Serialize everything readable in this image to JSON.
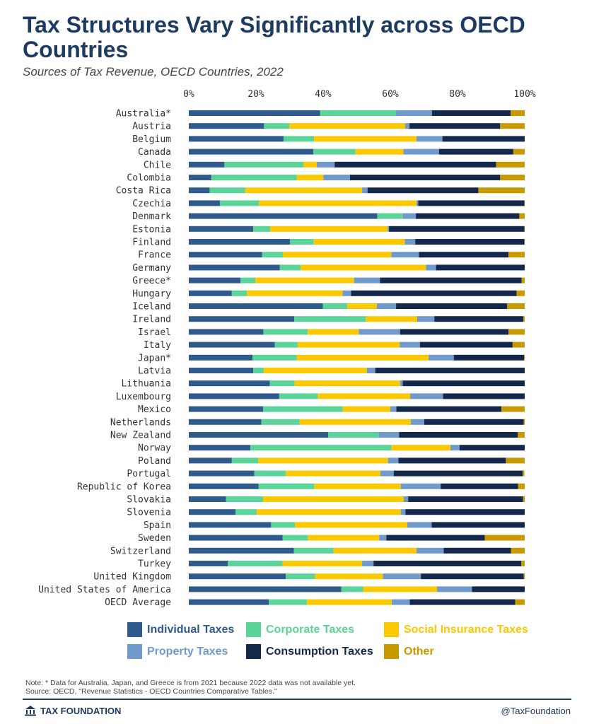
{
  "title": "Tax Structures Vary Significantly across OECD Countries",
  "subtitle": "Sources of Tax Revenue, OECD Countries, 2022",
  "note": "Note: * Data for Australia, Japan, and Greece is from 2021 because 2022 data was not available yet.",
  "source": "Source: OECD, \"Revenue Statistics - OECD Countries Comparative Tables.\"",
  "brand": "TAX FOUNDATION",
  "handle": "@TaxFoundation",
  "chart_data": {
    "type": "bar",
    "orientation": "horizontal",
    "stacked": true,
    "title": "Tax Structures Vary Significantly across OECD Countries",
    "subtitle": "Sources of Tax Revenue, OECD Countries, 2022",
    "xlabel": "",
    "ylabel": "",
    "xlim": [
      0,
      100
    ],
    "x_ticks": [
      "0%",
      "20%",
      "40%",
      "60%",
      "80%",
      "100%"
    ],
    "grid": false,
    "legend_position": "bottom",
    "categories": [
      "Australia*",
      "Austria",
      "Belgium",
      "Canada",
      "Chile",
      "Colombia",
      "Costa Rica",
      "Czechia",
      "Denmark",
      "Estonia",
      "Finland",
      "France",
      "Germany",
      "Greece*",
      "Hungary",
      "Iceland",
      "Ireland",
      "Israel",
      "Italy",
      "Japan*",
      "Latvia",
      "Lithuania",
      "Luxembourg",
      "Mexico",
      "Netherlands",
      "New Zealand",
      "Norway",
      "Poland",
      "Portugal",
      "Republic of Korea",
      "Slovakia",
      "Slovenia",
      "Spain",
      "Sweden",
      "Switzerland",
      "Turkey",
      "United Kingdom",
      "United States of America",
      "OECD Average"
    ],
    "series": [
      {
        "name": "Individual Taxes",
        "color": "#2f5a8c",
        "values": [
          39.1,
          22.4,
          28.2,
          37.1,
          10.6,
          6.7,
          6.2,
          9.3,
          56.1,
          19.2,
          30.1,
          21.8,
          27.1,
          15.4,
          12.8,
          39.9,
          31.4,
          22.2,
          25.6,
          19.0,
          19.2,
          24.1,
          26.9,
          22.1,
          21.6,
          41.5,
          18.3,
          12.8,
          19.5,
          20.8,
          11.1,
          13.9,
          24.5,
          27.9,
          31.3,
          11.6,
          28.9,
          45.4,
          23.8
        ]
      },
      {
        "name": "Corporate Taxes",
        "color": "#5bd49a",
        "values": [
          22.6,
          7.5,
          9.1,
          12.5,
          23.5,
          25.4,
          10.6,
          11.6,
          7.4,
          5.0,
          7.1,
          6.2,
          6.2,
          4.4,
          4.5,
          7.3,
          21.3,
          13.2,
          6.8,
          13.1,
          3.1,
          7.4,
          11.5,
          23.7,
          11.4,
          15.0,
          42.0,
          7.9,
          9.4,
          16.6,
          11.0,
          6.3,
          7.1,
          7.6,
          11.8,
          16.3,
          8.7,
          6.5,
          11.4
        ]
      },
      {
        "name": "Social Insurance Taxes",
        "color": "#fcc800",
        "values": [
          0.0,
          34.5,
          30.5,
          14.3,
          4.0,
          8.0,
          34.8,
          46.9,
          0.1,
          35.0,
          27.1,
          32.3,
          37.3,
          29.4,
          28.5,
          8.8,
          15.3,
          15.2,
          30.4,
          39.3,
          30.7,
          31.4,
          27.5,
          14.2,
          33.1,
          0.0,
          17.6,
          38.6,
          28.1,
          25.7,
          41.9,
          42.9,
          33.4,
          21.2,
          24.7,
          23.7,
          20.2,
          22.0,
          25.2
        ]
      },
      {
        "name": "Property Taxes",
        "color": "#6f9acb",
        "values": [
          10.7,
          1.3,
          7.7,
          10.6,
          5.3,
          7.9,
          1.6,
          0.5,
          4.0,
          0.4,
          3.1,
          8.2,
          3.0,
          7.7,
          2.5,
          5.7,
          5.1,
          12.3,
          6.0,
          7.5,
          2.5,
          0.8,
          9.8,
          1.8,
          4.0,
          6.1,
          2.7,
          3.1,
          4.0,
          11.9,
          1.3,
          1.4,
          7.3,
          2.1,
          8.1,
          3.4,
          11.3,
          10.4,
          5.4
        ]
      },
      {
        "name": "Consumption Taxes",
        "color": "#14284b",
        "values": [
          23.4,
          27.0,
          24.5,
          22.1,
          48.1,
          44.7,
          33.0,
          31.6,
          30.8,
          40.3,
          32.5,
          26.7,
          26.4,
          42.2,
          49.3,
          33.1,
          26.5,
          32.3,
          27.6,
          20.9,
          44.5,
          36.3,
          24.3,
          31.3,
          29.6,
          35.3,
          19.4,
          32.0,
          38.4,
          23.0,
          34.2,
          35.5,
          27.7,
          29.3,
          20.0,
          44.0,
          30.6,
          15.7,
          31.4
        ]
      },
      {
        "name": "Other",
        "color": "#c99a00",
        "values": [
          4.2,
          7.3,
          0.0,
          3.4,
          8.5,
          7.3,
          13.8,
          0.1,
          1.6,
          0.1,
          0.1,
          4.8,
          0.0,
          0.9,
          2.4,
          5.2,
          0.4,
          4.8,
          3.6,
          0.2,
          0.0,
          0.0,
          0.0,
          6.9,
          0.3,
          2.1,
          0.0,
          5.6,
          0.5,
          2.0,
          0.5,
          0.0,
          0.0,
          11.9,
          4.1,
          1.0,
          0.3,
          0.0,
          2.8
        ]
      }
    ]
  }
}
